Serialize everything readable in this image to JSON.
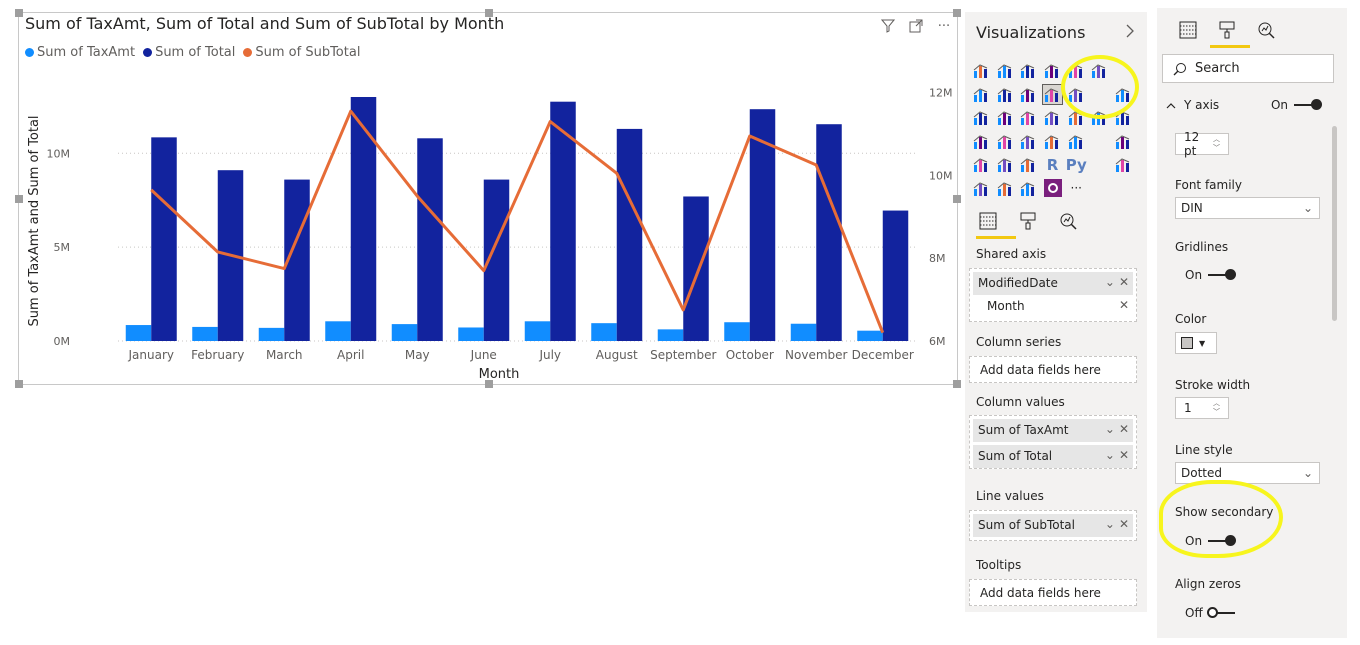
{
  "visual": {
    "title": "Sum of TaxAmt, Sum of Total and Sum of SubTotal by Month",
    "filter_icon": "filter-icon",
    "focus_icon": "focus-mode-icon",
    "more_label": "···"
  },
  "colors": {
    "taxamt": "#118dff",
    "total": "#12239e",
    "subtotal": "#e66c37",
    "highlight": "#f7f51d",
    "accent": "#f2c811"
  },
  "chart_data": {
    "type": "bar",
    "title": "Sum of TaxAmt, Sum of Total and Sum of SubTotal by Month",
    "xlabel": "Month",
    "ylabel": "Sum of TaxAmt and Sum of Total",
    "categories": [
      "January",
      "February",
      "March",
      "April",
      "May",
      "June",
      "July",
      "August",
      "September",
      "October",
      "November",
      "December"
    ],
    "series": [
      {
        "name": "Sum of TaxAmt",
        "type": "bar",
        "axis": "primary",
        "values": [
          0.85,
          0.75,
          0.7,
          1.05,
          0.9,
          0.72,
          1.05,
          0.95,
          0.62,
          1.0,
          0.92,
          0.55
        ]
      },
      {
        "name": "Sum of Total",
        "type": "bar",
        "axis": "primary",
        "values": [
          10.85,
          9.1,
          8.6,
          13.0,
          10.8,
          8.6,
          12.75,
          11.3,
          7.7,
          12.35,
          11.55,
          6.95
        ]
      },
      {
        "name": "Sum of SubTotal",
        "type": "line",
        "axis": "secondary",
        "values": [
          9.65,
          8.15,
          7.75,
          11.55,
          9.5,
          7.7,
          11.3,
          10.05,
          6.75,
          10.95,
          10.25,
          6.2
        ]
      }
    ],
    "y_primary": {
      "ticks": [
        0,
        5,
        10
      ],
      "tick_labels": [
        "0M",
        "5M",
        "10M"
      ],
      "ylim": [
        0,
        13.0
      ]
    },
    "y_secondary": {
      "ticks": [
        6,
        8,
        10,
        12
      ],
      "tick_labels": [
        "6M",
        "8M",
        "10M",
        "12M"
      ],
      "ylim": [
        6,
        12.4
      ]
    },
    "legend": "top-left",
    "grid": true
  },
  "viz_pane": {
    "title": "Visualizations",
    "collapse_icon": "chevron-right-icon",
    "tabs": [
      "fields-icon",
      "format-paintbrush-icon",
      "analytics-icon"
    ],
    "r_label": "R",
    "py_label": "Py",
    "more_label": "···",
    "sections": {
      "shared_axis": "Shared axis",
      "column_series": "Column series",
      "column_values": "Column values",
      "line_values": "Line values",
      "tooltips": "Tooltips"
    },
    "fields": {
      "shared_axis": [
        "ModifiedDate",
        "Month"
      ],
      "column_values": [
        "Sum of TaxAmt",
        "Sum of Total"
      ],
      "line_values": [
        "Sum of SubTotal"
      ]
    },
    "placeholder": "Add data fields here"
  },
  "format_pane": {
    "tabs": [
      "fields-icon",
      "format-paintbrush-icon",
      "analytics-icon"
    ],
    "search_label": "Search",
    "card": {
      "title": "Y axis",
      "toggle": "On"
    },
    "text_size": "12",
    "text_unit": "pt",
    "font_family_label": "Font family",
    "font_family_value": "DIN",
    "gridlines_label": "Gridlines",
    "gridlines_toggle": "On",
    "color_label": "Color",
    "color_value": "#c8c6c4",
    "stroke_width_label": "Stroke width",
    "stroke_width_value": "1",
    "line_style_label": "Line style",
    "line_style_value": "Dotted",
    "show_secondary_label": "Show secondary",
    "show_secondary_toggle": "On",
    "align_zeros_label": "Align zeros",
    "align_zeros_toggle": "Off"
  }
}
